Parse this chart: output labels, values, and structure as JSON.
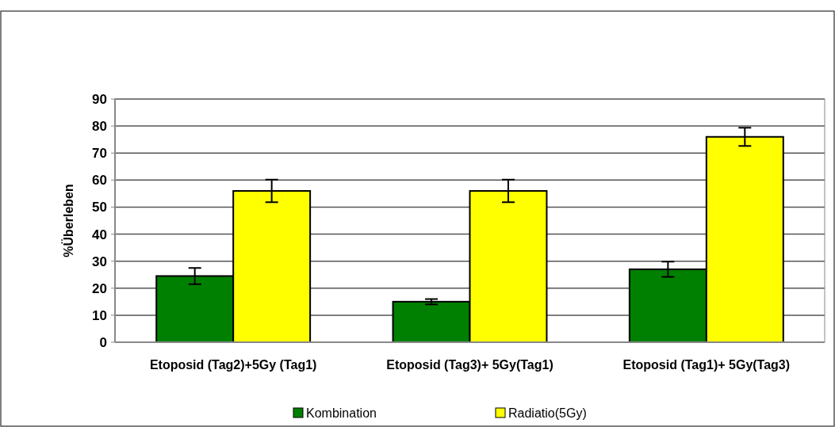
{
  "chart_data": {
    "type": "bar",
    "ylabel": "%Überleben",
    "categories": [
      "Etoposid (Tag2)+5Gy (Tag1)",
      "Etoposid (Tag3)+  5Gy(Tag1)",
      "Etoposid (Tag1)+ 5Gy(Tag3)"
    ],
    "series": [
      {
        "name": "Kombination",
        "color": "#008000",
        "values": [
          24.5,
          15,
          27
        ],
        "errors": [
          3,
          1,
          2.8
        ]
      },
      {
        "name": "Radiatio(5Gy)",
        "color": "#ffff00",
        "values": [
          56,
          56,
          76
        ],
        "errors": [
          4.2,
          4.2,
          3.4
        ]
      }
    ],
    "ylim": [
      0,
      90
    ],
    "yticks": [
      0,
      10,
      20,
      30,
      40,
      50,
      60,
      70,
      80,
      90
    ],
    "grid": "y",
    "legend": "bottom"
  }
}
